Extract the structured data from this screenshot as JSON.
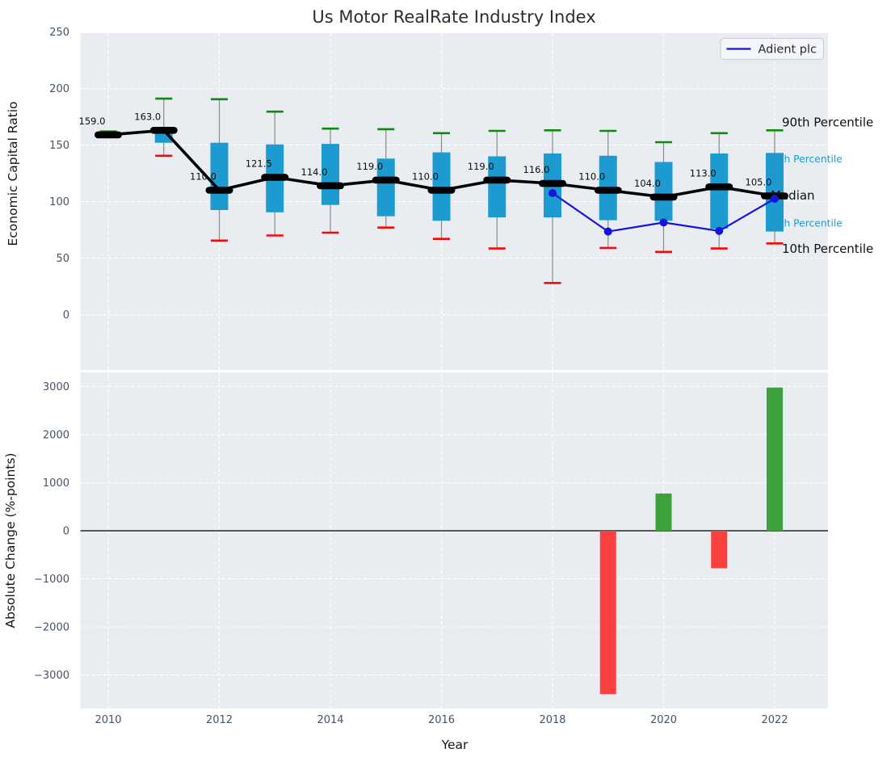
{
  "figure": {
    "legend": {
      "label": "Adient plc"
    },
    "colors": {
      "axes_bg": "#e9edf1",
      "grid": "#ffffff",
      "tick": "#46536b",
      "box": "#1d9bd1",
      "cap_high": "#0e8a0e",
      "cap_low": "#f50a0a",
      "median": "#000000",
      "company_line": "#1414dd",
      "bar_pos": "#3da23d",
      "bar_neg": "#fb4040",
      "whisker": "#8a8a8a",
      "label_cyan": "#1d9bd1"
    }
  },
  "chart_data": [
    {
      "type": "boxplot-line",
      "title": "Us Motor RealRate Industry Index",
      "ylabel": "Economic Capital Ratio",
      "ylim": [
        -49,
        249
      ],
      "yticks": [
        0,
        50,
        100,
        150,
        200,
        250
      ],
      "ytick_labels": [
        "0",
        "50",
        "100",
        "150",
        "200",
        "250"
      ],
      "grid": true,
      "legend_position": "upper right",
      "years": [
        2010,
        2011,
        2012,
        2013,
        2014,
        2015,
        2016,
        2017,
        2018,
        2019,
        2020,
        2021,
        2022
      ],
      "series": [
        {
          "name": "90th Percentile",
          "values": [
            162,
            191,
            190.5,
            179.5,
            164.5,
            164,
            160.5,
            162.5,
            163,
            162.5,
            152.5,
            160.5,
            163
          ]
        },
        {
          "name": "75th Percentile",
          "values": [
            160,
            164.5,
            152,
            150.5,
            151,
            138,
            143.5,
            140,
            142.5,
            140.5,
            135,
            142.5,
            143
          ]
        },
        {
          "name": "Median",
          "values": [
            159,
            163,
            110,
            121.5,
            114,
            119,
            110,
            119,
            116,
            110,
            104,
            113,
            105
          ]
        },
        {
          "name": "25th Percentile",
          "values": [
            157,
            152,
            92.5,
            90.5,
            97,
            87,
            83,
            86,
            86,
            83.5,
            83,
            76,
            73.5
          ]
        },
        {
          "name": "10th Percentile",
          "values": [
            157.5,
            140.5,
            65.5,
            70,
            72.5,
            77,
            67,
            58.5,
            28,
            59,
            55.5,
            58.5,
            63
          ]
        }
      ],
      "median_labels": [
        "159.0",
        "163.0",
        "110.0",
        "121.5",
        "114.0",
        "119.0",
        "110.0",
        "119.0",
        "116.0",
        "110.0",
        "104.0",
        "113.0",
        "105.0"
      ],
      "company_series": {
        "name": "Adient plc",
        "years": [
          2018,
          2019,
          2020,
          2021,
          2022
        ],
        "values": [
          107.5,
          73.5,
          81.5,
          74,
          102.5
        ]
      },
      "right_axis_labels": [
        {
          "text": "90th Percentile",
          "style": "dark",
          "anchor_value": 169.5
        },
        {
          "text": "75th Percentile",
          "style": "cyan",
          "anchor_value": 138
        },
        {
          "text": "Median",
          "style": "dark",
          "anchor_value": 105
        },
        {
          "text": "25th Percentile",
          "style": "cyan",
          "anchor_value": 81
        },
        {
          "text": "10th Percentile",
          "style": "dark",
          "anchor_value": 58
        }
      ]
    },
    {
      "type": "bar",
      "ylabel": "Absolute Change (%-points)",
      "xlabel": "Year",
      "ylim": [
        -3700,
        3300
      ],
      "yticks": [
        -3000,
        -2000,
        -1000,
        0,
        1000,
        2000,
        3000
      ],
      "ytick_labels": [
        "−3000",
        "−2000",
        "−1000",
        "0",
        "1000",
        "2000",
        "3000"
      ],
      "xticks": [
        2010,
        2012,
        2014,
        2016,
        2018,
        2020,
        2022
      ],
      "xtick_labels": [
        "2010",
        "2012",
        "2014",
        "2016",
        "2018",
        "2020",
        "2022"
      ],
      "zero_line": true,
      "bars": [
        {
          "year": 2019,
          "value": -3400
        },
        {
          "year": 2020,
          "value": 775
        },
        {
          "year": 2021,
          "value": -780
        },
        {
          "year": 2022,
          "value": 2980
        }
      ]
    }
  ]
}
